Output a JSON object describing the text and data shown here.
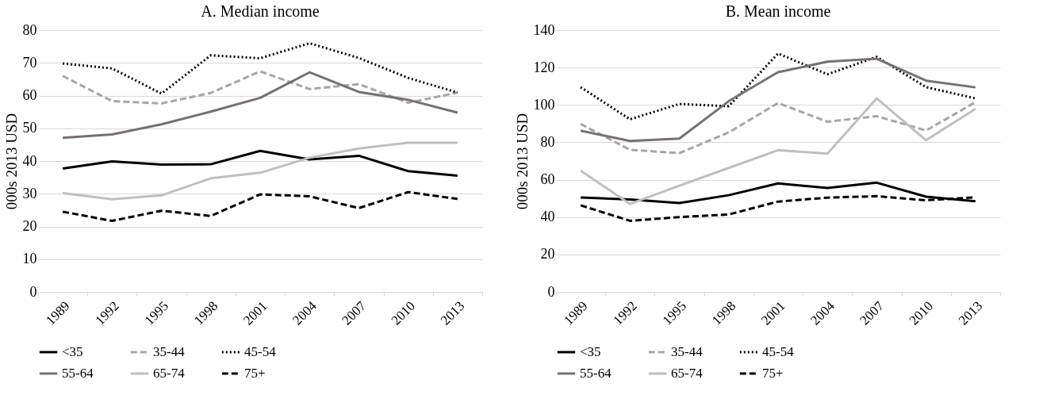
{
  "chart_data": [
    {
      "type": "line",
      "title": "A. Median income",
      "ylabel": "000s 2013 USD",
      "categories": [
        "1989",
        "1992",
        "1995",
        "1998",
        "2001",
        "2004",
        "2007",
        "2010",
        "2013"
      ],
      "ylim": [
        0,
        80
      ],
      "yticks": [
        0,
        10,
        20,
        30,
        40,
        50,
        60,
        70,
        80
      ],
      "grid": "y",
      "legend": "bottom",
      "series": [
        {
          "name": "<35",
          "color": "#000000",
          "line_style": "solid",
          "values": [
            37.7,
            39.9,
            38.9,
            39.0,
            43.1,
            40.5,
            41.6,
            36.9,
            35.5
          ]
        },
        {
          "name": "35-44",
          "color": "#a6a6a6",
          "line_style": "dashed",
          "values": [
            66.0,
            58.3,
            57.6,
            60.8,
            67.4,
            62.0,
            63.5,
            57.8,
            60.9
          ]
        },
        {
          "name": "45-54",
          "color": "#000000",
          "line_style": "dotted",
          "values": [
            69.8,
            68.3,
            60.6,
            72.3,
            71.4,
            76.0,
            71.5,
            65.4,
            60.9
          ]
        },
        {
          "name": "55-64",
          "color": "#767171",
          "line_style": "solid",
          "values": [
            47.1,
            48.1,
            51.2,
            55.1,
            59.3,
            67.1,
            61.1,
            58.7,
            54.8
          ]
        },
        {
          "name": "65-74",
          "color": "#bfbfbf",
          "line_style": "solid",
          "values": [
            30.2,
            28.3,
            29.5,
            34.7,
            36.4,
            41.0,
            43.8,
            45.6,
            45.6
          ]
        },
        {
          "name": "75+",
          "color": "#000000",
          "line_style": "dashed",
          "values": [
            24.5,
            21.7,
            24.8,
            23.2,
            29.8,
            29.2,
            25.6,
            30.5,
            28.4
          ]
        }
      ]
    },
    {
      "type": "line",
      "title": "B. Mean income",
      "ylabel": "000s 2013 USD",
      "categories": [
        "1989",
        "1992",
        "1995",
        "1998",
        "2001",
        "2004",
        "2007",
        "2010",
        "2013"
      ],
      "ylim": [
        0,
        140
      ],
      "yticks": [
        0,
        20,
        40,
        60,
        80,
        100,
        120,
        140
      ],
      "grid": "y",
      "legend": "bottom",
      "series": [
        {
          "name": "<35",
          "color": "#000000",
          "line_style": "solid",
          "values": [
            50.5,
            49.4,
            47.5,
            51.7,
            58.0,
            55.6,
            58.4,
            50.9,
            48.5
          ]
        },
        {
          "name": "35-44",
          "color": "#a6a6a6",
          "line_style": "dashed",
          "values": [
            89.8,
            76.0,
            74.2,
            85.3,
            101.0,
            91.0,
            94.0,
            86.3,
            101.5
          ]
        },
        {
          "name": "45-54",
          "color": "#000000",
          "line_style": "dotted",
          "values": [
            109.5,
            92.3,
            100.5,
            99.3,
            127.5,
            116.4,
            125.7,
            109.5,
            103.5
          ]
        },
        {
          "name": "55-64",
          "color": "#767171",
          "line_style": "solid",
          "values": [
            86.2,
            80.7,
            82.0,
            102.0,
            117.5,
            123.1,
            124.7,
            113.0,
            109.4
          ]
        },
        {
          "name": "65-74",
          "color": "#bfbfbf",
          "line_style": "solid",
          "values": [
            64.8,
            47.0,
            56.8,
            66.3,
            75.8,
            73.9,
            103.5,
            81.1,
            97.9
          ]
        },
        {
          "name": "75+",
          "color": "#000000",
          "line_style": "dashed",
          "values": [
            46.3,
            38.0,
            40.0,
            41.4,
            48.3,
            50.4,
            51.2,
            49.0,
            50.6
          ]
        }
      ]
    }
  ]
}
